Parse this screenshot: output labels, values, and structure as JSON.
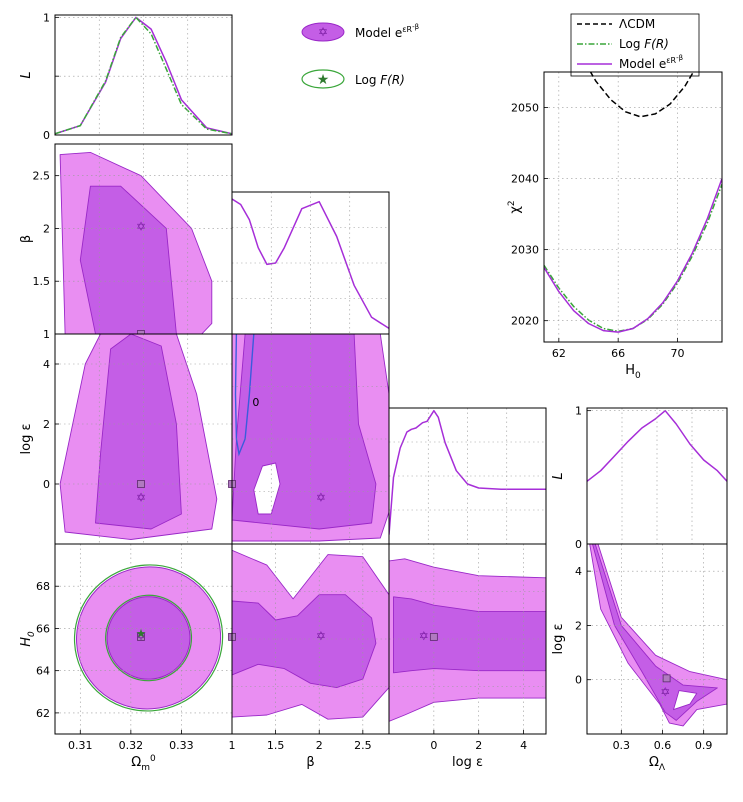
{
  "colors": {
    "outer_fill": "#e98ef2",
    "inner_fill": "#c45ee6",
    "region_edge": "#9a28c8",
    "model_line": "#a62ed8",
    "logfr_line": "#3aa63a",
    "lcdm_line": "#000000",
    "contour_zero": "#3a5cdc"
  },
  "legend_main": {
    "model_label": "Model e^{εR^{-β}}",
    "logfr_label": "Log F(R)"
  },
  "legend_chi": {
    "lcdm_label": "ΛCDM",
    "logfr_label": "Log F(R)",
    "model_label": "Model e^{εR^{-β}}"
  },
  "chart_data": [
    {
      "type": "line",
      "name": "panel-L-omega",
      "ylabel": "L",
      "x_range": [
        0.305,
        0.34
      ],
      "ylim": [
        0,
        1.02
      ],
      "yticks": [
        0,
        0.5,
        1
      ],
      "ytick_labels": [
        "0",
        "",
        "1"
      ],
      "series": [
        {
          "name": "Model e^{εR^{-β}}",
          "x": [
            0.305,
            0.31,
            0.315,
            0.318,
            0.321,
            0.324,
            0.327,
            0.33,
            0.335,
            0.34
          ],
          "y": [
            0.01,
            0.08,
            0.45,
            0.82,
            1.0,
            0.9,
            0.62,
            0.3,
            0.06,
            0.01
          ]
        },
        {
          "name": "Log F(R)",
          "x": [
            0.305,
            0.31,
            0.315,
            0.318,
            0.321,
            0.324,
            0.327,
            0.33,
            0.335,
            0.34
          ],
          "y": [
            0.01,
            0.08,
            0.46,
            0.83,
            1.0,
            0.86,
            0.56,
            0.26,
            0.05,
            0.01
          ]
        }
      ],
      "grid": true
    },
    {
      "type": "area",
      "name": "panel-beta-omega",
      "ylabel": "β",
      "x_range": [
        0.305,
        0.34
      ],
      "ylim": [
        1,
        2.8
      ],
      "yticks": [
        1,
        1.5,
        2,
        2.5
      ],
      "ytick_labels": [
        "1",
        "1.5",
        "2",
        "2.5"
      ],
      "outer_region": [
        [
          0.307,
          1.0
        ],
        [
          0.306,
          2.7
        ],
        [
          0.312,
          2.72
        ],
        [
          0.322,
          2.5
        ],
        [
          0.332,
          2.0
        ],
        [
          0.336,
          1.5
        ],
        [
          0.336,
          1.1
        ],
        [
          0.334,
          1.0
        ]
      ],
      "inner_region": [
        [
          0.313,
          1.0
        ],
        [
          0.31,
          1.7
        ],
        [
          0.312,
          2.4
        ],
        [
          0.318,
          2.4
        ],
        [
          0.327,
          2.0
        ],
        [
          0.328,
          1.5
        ],
        [
          0.329,
          1.0
        ]
      ],
      "best_fit": {
        "x": 0.322,
        "y": 2.02
      },
      "marker_square": {
        "x": 0.322,
        "y": 1.0
      },
      "grid": true
    },
    {
      "type": "line",
      "name": "panel-L-beta",
      "x_range": [
        1,
        2.8
      ],
      "ylim": [
        0,
        1.02
      ],
      "series": [
        {
          "name": "Model e^{εR^{-β}}",
          "x": [
            1.0,
            1.1,
            1.2,
            1.3,
            1.4,
            1.5,
            1.6,
            1.8,
            2.0,
            2.2,
            2.4,
            2.6,
            2.8
          ],
          "y": [
            0.97,
            0.93,
            0.82,
            0.62,
            0.5,
            0.51,
            0.62,
            0.9,
            0.95,
            0.7,
            0.35,
            0.12,
            0.04
          ]
        }
      ],
      "grid": true
    },
    {
      "type": "area",
      "name": "panel-logeps-omega",
      "ylabel": "log ε",
      "x_range": [
        0.305,
        0.34
      ],
      "ylim": [
        -2,
        5
      ],
      "yticks": [
        0,
        2,
        4
      ],
      "ytick_labels": [
        "0",
        "2",
        "4"
      ],
      "outer_region": [
        [
          0.307,
          -1.6
        ],
        [
          0.306,
          0.0
        ],
        [
          0.311,
          4.0
        ],
        [
          0.314,
          5.0
        ],
        [
          0.329,
          5.0
        ],
        [
          0.333,
          3.0
        ],
        [
          0.337,
          -0.5
        ],
        [
          0.336,
          -1.5
        ],
        [
          0.32,
          -1.85
        ]
      ],
      "inner_region": [
        [
          0.313,
          -1.3
        ],
        [
          0.314,
          1.0
        ],
        [
          0.316,
          4.5
        ],
        [
          0.32,
          5.0
        ],
        [
          0.326,
          4.6
        ],
        [
          0.329,
          2.0
        ],
        [
          0.33,
          -1.0
        ],
        [
          0.324,
          -1.5
        ]
      ],
      "best_fit": {
        "x": 0.322,
        "y": -0.45
      },
      "marker_square": {
        "x": 0.322,
        "y": 0.0
      },
      "grid": true
    },
    {
      "type": "area",
      "name": "panel-logeps-beta",
      "x_range": [
        1,
        2.8
      ],
      "ylim": [
        -2,
        5
      ],
      "outer_region": [
        [
          1.0,
          -1.9
        ],
        [
          1.0,
          5.0
        ],
        [
          2.7,
          5.0
        ],
        [
          2.8,
          3.0
        ],
        [
          2.85,
          -0.5
        ],
        [
          2.7,
          -1.8
        ],
        [
          2.0,
          -1.9
        ]
      ],
      "inner_region": [
        [
          1.0,
          -1.2
        ],
        [
          1.05,
          1.5
        ],
        [
          1.15,
          5.0
        ],
        [
          2.4,
          5.0
        ],
        [
          2.45,
          2.0
        ],
        [
          2.65,
          0.0
        ],
        [
          2.6,
          -1.3
        ],
        [
          2.0,
          -1.5
        ]
      ],
      "white_hole": [
        [
          1.3,
          -1.0
        ],
        [
          1.25,
          -0.2
        ],
        [
          1.35,
          0.6
        ],
        [
          1.5,
          0.7
        ],
        [
          1.55,
          0.0
        ],
        [
          1.45,
          -1.0
        ]
      ],
      "zero_contour": {
        "label": "0",
        "x": [
          1.05,
          1.04,
          1.05,
          1.08,
          1.15,
          1.2,
          1.25
        ],
        "y": [
          5.0,
          3.0,
          1.5,
          1.0,
          1.5,
          3.0,
          5.0
        ]
      },
      "best_fit": {
        "x": 2.02,
        "y": -0.45
      },
      "marker_square": {
        "x": 1.0,
        "y": 0.0
      },
      "grid": true
    },
    {
      "type": "line",
      "name": "panel-L-logeps",
      "x_range": [
        -2,
        5
      ],
      "ylim": [
        0,
        1.02
      ],
      "series": [
        {
          "name": "Model e^{εR^{-β}}",
          "x": [
            -2,
            -1.8,
            -1.5,
            -1.2,
            -1,
            -0.8,
            -0.5,
            -0.3,
            0,
            0.2,
            0.5,
            1,
            1.5,
            2,
            3,
            4,
            5
          ],
          "y": [
            0.07,
            0.5,
            0.72,
            0.84,
            0.86,
            0.87,
            0.91,
            0.92,
            1.0,
            0.95,
            0.76,
            0.55,
            0.45,
            0.42,
            0.41,
            0.41,
            0.41
          ]
        }
      ],
      "grid": true
    },
    {
      "type": "area",
      "name": "panel-H0-omega",
      "ylabel": "H_0",
      "xlabel": "Ω_m^0",
      "x_range": [
        0.305,
        0.34
      ],
      "ylim": [
        61,
        70
      ],
      "yticks": [
        62,
        64,
        66,
        68
      ],
      "ytick_labels": [
        "62",
        "64",
        "66",
        "68"
      ],
      "xticks": [
        0.31,
        0.32,
        0.33
      ],
      "xtick_labels": [
        "0.31",
        "0.32",
        "0.33"
      ],
      "ellipse_outer": {
        "cx": 0.3235,
        "cy": 65.55,
        "rx": 0.0143,
        "ry": 3.35
      },
      "ellipse_inner": {
        "cx": 0.3235,
        "cy": 65.55,
        "rx": 0.0082,
        "ry": 1.95
      },
      "best_fit": {
        "x": 0.322,
        "y": 65.65
      },
      "marker_square": {
        "x": 0.322,
        "y": 65.6
      },
      "logfr_star": {
        "x": 0.322,
        "y": 65.75
      },
      "grid": true
    },
    {
      "type": "area",
      "name": "panel-H0-beta",
      "xlabel": "β",
      "x_range": [
        1,
        2.8
      ],
      "ylim": [
        61,
        70
      ],
      "xticks": [
        1,
        1.5,
        2,
        2.5
      ],
      "xtick_labels": [
        "1",
        "1.5",
        "2",
        "2.5"
      ],
      "outer_region": [
        [
          1.0,
          61.8
        ],
        [
          1.0,
          69.7
        ],
        [
          1.4,
          69.0
        ],
        [
          1.7,
          67.4
        ],
        [
          2.1,
          69.5
        ],
        [
          2.5,
          69.4
        ],
        [
          2.8,
          67.6
        ],
        [
          2.9,
          65.5
        ],
        [
          2.8,
          63.2
        ],
        [
          2.5,
          61.8
        ],
        [
          2.1,
          61.7
        ],
        [
          1.8,
          62.4
        ],
        [
          1.4,
          61.9
        ],
        [
          1.0,
          61.8
        ]
      ],
      "inner_region": [
        [
          1.0,
          63.8
        ],
        [
          1.0,
          67.3
        ],
        [
          1.3,
          67.2
        ],
        [
          1.5,
          66.4
        ],
        [
          1.75,
          66.6
        ],
        [
          2.0,
          67.6
        ],
        [
          2.3,
          67.6
        ],
        [
          2.6,
          66.5
        ],
        [
          2.65,
          65.3
        ],
        [
          2.5,
          63.6
        ],
        [
          2.2,
          63.2
        ],
        [
          1.9,
          63.4
        ],
        [
          1.6,
          64.1
        ],
        [
          1.3,
          64.3
        ],
        [
          1.0,
          63.8
        ]
      ],
      "best_fit": {
        "x": 2.02,
        "y": 65.65
      },
      "marker_square": {
        "x": 1.0,
        "y": 65.6
      },
      "grid": true
    },
    {
      "type": "area",
      "name": "panel-H0-logeps",
      "xlabel": "log ε",
      "x_range": [
        -2,
        5
      ],
      "ylim": [
        61,
        70
      ],
      "xticks": [
        0,
        2,
        4
      ],
      "xtick_labels": [
        "0",
        "2",
        "4"
      ],
      "outer_region": [
        [
          -2.0,
          61.6
        ],
        [
          -2.0,
          69.2
        ],
        [
          -1.3,
          69.3
        ],
        [
          0.0,
          68.9
        ],
        [
          2.0,
          68.5
        ],
        [
          5.0,
          68.4
        ],
        [
          5.0,
          62.7
        ],
        [
          2.0,
          62.7
        ],
        [
          0.0,
          62.5
        ],
        [
          -1.3,
          61.9
        ],
        [
          -2.0,
          61.6
        ]
      ],
      "inner_region": [
        [
          -1.8,
          63.9
        ],
        [
          -1.8,
          67.5
        ],
        [
          -1.0,
          67.4
        ],
        [
          0.0,
          67.1
        ],
        [
          2.0,
          66.8
        ],
        [
          5.0,
          66.8
        ],
        [
          5.0,
          64.0
        ],
        [
          2.0,
          64.0
        ],
        [
          0.0,
          64.1
        ],
        [
          -1.0,
          64.0
        ],
        [
          -1.8,
          63.9
        ]
      ],
      "best_fit": {
        "x": -0.45,
        "y": 65.65
      },
      "marker_square": {
        "x": 0.0,
        "y": 65.6
      },
      "grid": true
    },
    {
      "type": "line",
      "name": "panel-chi2-H0",
      "ylabel": "χ^2",
      "xlabel": "H_0",
      "x_range": [
        61,
        73
      ],
      "ylim": [
        2017,
        2055
      ],
      "xticks": [
        62,
        66,
        70
      ],
      "xtick_labels": [
        "62",
        "66",
        "70"
      ],
      "yticks": [
        2020,
        2030,
        2040,
        2050
      ],
      "ytick_labels": [
        "2020",
        "2030",
        "2040",
        "2050"
      ],
      "series": [
        {
          "name": "ΛCDM",
          "x": [
            63.5,
            64.5,
            65.5,
            66.5,
            67.5,
            68.5,
            69.5,
            70.5,
            71.5
          ],
          "y": [
            2057.3,
            2053.7,
            2051.1,
            2049.4,
            2048.7,
            2049.1,
            2050.5,
            2053.0,
            2056.5
          ]
        },
        {
          "name": "Log F(R)",
          "x": [
            61,
            62,
            63,
            64,
            65,
            66,
            67,
            68,
            69,
            70,
            71,
            72,
            73
          ],
          "y": [
            2027.8,
            2024.6,
            2022.0,
            2020.1,
            2018.9,
            2018.5,
            2018.9,
            2020.2,
            2022.3,
            2025.3,
            2029.1,
            2033.7,
            2039.2
          ]
        },
        {
          "name": "Model e^{εR^{-β}}",
          "x": [
            61,
            62,
            63,
            64,
            65,
            66,
            67,
            68,
            69,
            70,
            71,
            72,
            73
          ],
          "y": [
            2027.5,
            2024.1,
            2021.4,
            2019.6,
            2018.6,
            2018.4,
            2018.9,
            2020.3,
            2022.5,
            2025.6,
            2029.5,
            2034.3,
            2040.0
          ]
        }
      ],
      "grid": true
    },
    {
      "type": "line",
      "name": "panel-L-omegaL",
      "ylabel": "L",
      "x_range": [
        0.05,
        1.07
      ],
      "ylim": [
        0,
        1.02
      ],
      "yticks": [
        0,
        1
      ],
      "ytick_labels": [
        "0",
        "1"
      ],
      "series": [
        {
          "name": "Model e^{εR^{-β}}",
          "x": [
            0.05,
            0.15,
            0.25,
            0.35,
            0.45,
            0.55,
            0.62,
            0.7,
            0.8,
            0.9,
            1.0,
            1.07
          ],
          "y": [
            0.47,
            0.55,
            0.66,
            0.77,
            0.87,
            0.94,
            1.0,
            0.9,
            0.75,
            0.63,
            0.55,
            0.47
          ]
        }
      ],
      "grid": true
    },
    {
      "type": "area",
      "name": "panel-logeps-omegaL",
      "ylabel": "log ε",
      "xlabel": "Ω_Λ",
      "x_range": [
        0.05,
        1.07
      ],
      "ylim": [
        -2,
        5
      ],
      "xticks": [
        0.3,
        0.6,
        0.9
      ],
      "xtick_labels": [
        "0.3",
        "0.6",
        "0.9"
      ],
      "yticks": [
        0,
        2,
        4
      ],
      "ytick_labels": [
        "0",
        "2",
        "4"
      ],
      "outer_region": [
        [
          0.07,
          5.0
        ],
        [
          0.13,
          5.0
        ],
        [
          0.3,
          2.3
        ],
        [
          0.55,
          0.9
        ],
        [
          0.8,
          0.3
        ],
        [
          1.07,
          0.0
        ],
        [
          1.07,
          -0.9
        ],
        [
          0.85,
          -1.1
        ],
        [
          0.75,
          -1.7
        ],
        [
          0.65,
          -1.6
        ],
        [
          0.58,
          -0.9
        ],
        [
          0.35,
          0.6
        ],
        [
          0.15,
          2.6
        ],
        [
          0.07,
          5.0
        ]
      ],
      "inner_region": [
        [
          0.09,
          5.0
        ],
        [
          0.11,
          5.0
        ],
        [
          0.3,
          2.0
        ],
        [
          0.55,
          0.5
        ],
        [
          0.75,
          -0.2
        ],
        [
          1.0,
          -0.3
        ],
        [
          0.85,
          -0.8
        ],
        [
          0.7,
          -1.5
        ],
        [
          0.62,
          -1.2
        ],
        [
          0.45,
          0.3
        ],
        [
          0.25,
          2.0
        ],
        [
          0.09,
          5.0
        ]
      ],
      "white_hole": [
        [
          0.68,
          -1.1
        ],
        [
          0.72,
          -0.4
        ],
        [
          0.85,
          -0.5
        ],
        [
          0.8,
          -0.9
        ]
      ],
      "best_fit": {
        "x": 0.62,
        "y": -0.45
      },
      "marker_square": {
        "x": 0.63,
        "y": 0.05
      },
      "grid": true
    }
  ]
}
